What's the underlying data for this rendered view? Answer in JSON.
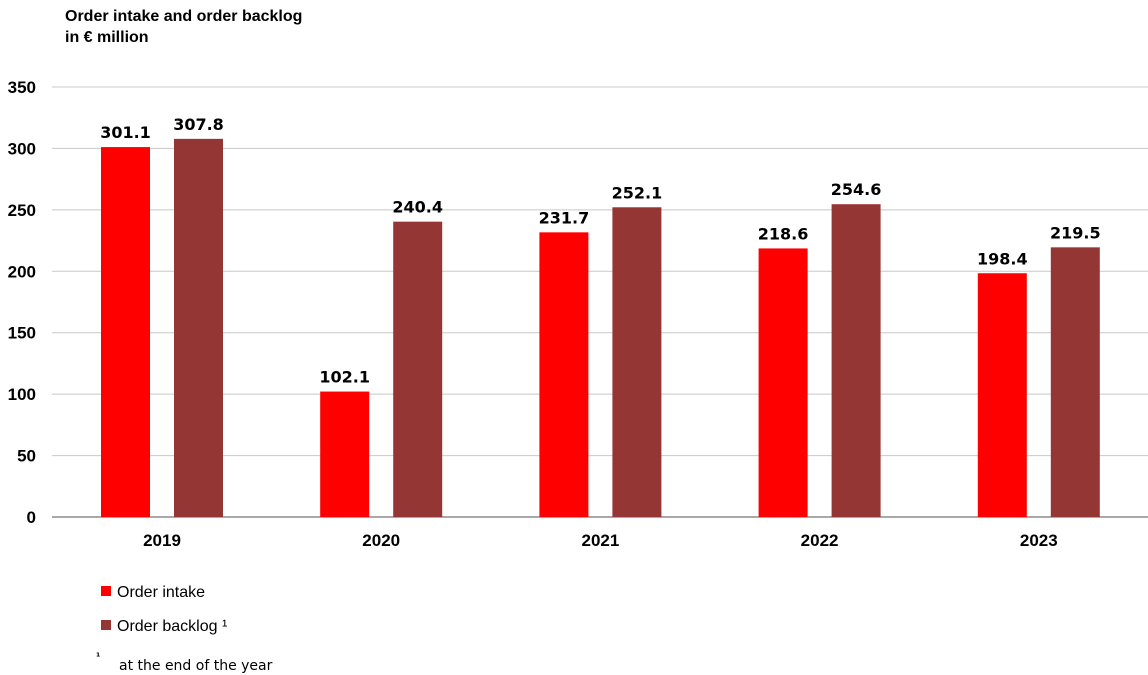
{
  "chart_data": {
    "type": "bar",
    "title": "Order intake and order backlog",
    "subtitle": "in € million",
    "xlabel": "",
    "ylabel": "",
    "categories": [
      "2019",
      "2020",
      "2021",
      "2022",
      "2023"
    ],
    "series": [
      {
        "name": "Order intake",
        "color": "#ff0000",
        "values": [
          301.1,
          102.1,
          231.7,
          218.6,
          198.4
        ]
      },
      {
        "name": "Order backlog ¹",
        "color": "#943634",
        "values": [
          307.8,
          240.4,
          252.1,
          254.6,
          219.5
        ]
      }
    ],
    "ylim": [
      0,
      350
    ],
    "yticks": [
      "0",
      "50",
      "100",
      "150",
      "200",
      "250",
      "300",
      "350"
    ],
    "data_labels": [
      [
        "301.1",
        "102.1",
        "231.7",
        "218.6",
        "198.4"
      ],
      [
        "307.8",
        "240.4",
        "252.1",
        "254.6",
        "219.5"
      ]
    ],
    "grid": true,
    "legend_position": "bottom-left",
    "footnote": {
      "marker": "¹",
      "text": "at the end of the year"
    }
  }
}
